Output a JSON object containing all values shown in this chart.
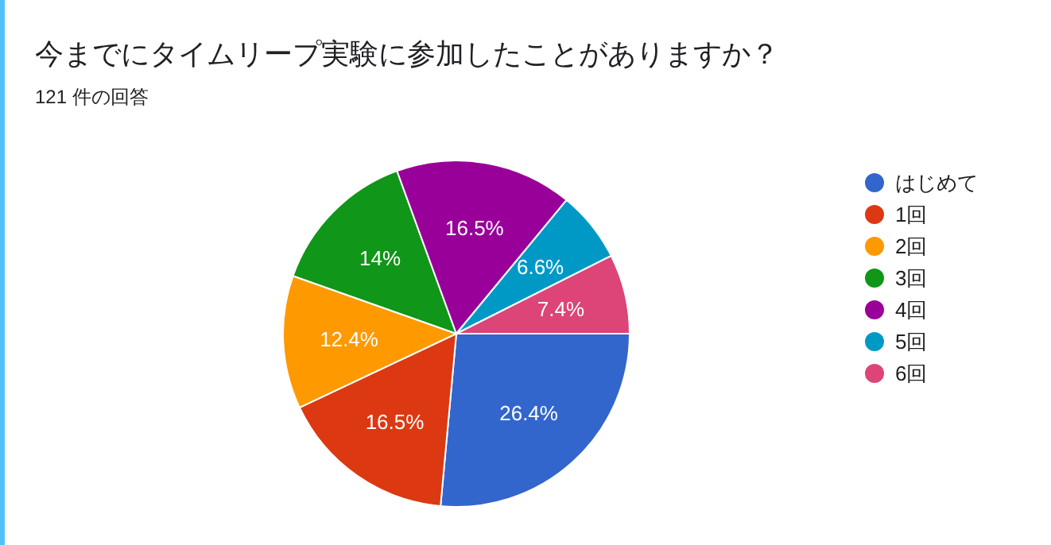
{
  "chart_data": {
    "type": "pie",
    "title": "今までにタイムリープ実験に参加したことがありますか？",
    "subtitle": "121 件の回答",
    "categories": [
      "はじめて",
      "1回",
      "2回",
      "3回",
      "4回",
      "5回",
      "6回"
    ],
    "values": [
      26.4,
      16.5,
      12.4,
      14,
      16.5,
      6.6,
      7.4
    ],
    "colors": [
      "#3366cc",
      "#dc3912",
      "#ff9900",
      "#109618",
      "#990099",
      "#0099c6",
      "#dd4477"
    ],
    "value_labels": [
      "26.4%",
      "16.5%",
      "12.4%",
      "14%",
      "16.5%",
      "6.6%",
      "7.4%"
    ],
    "legend": "right"
  }
}
